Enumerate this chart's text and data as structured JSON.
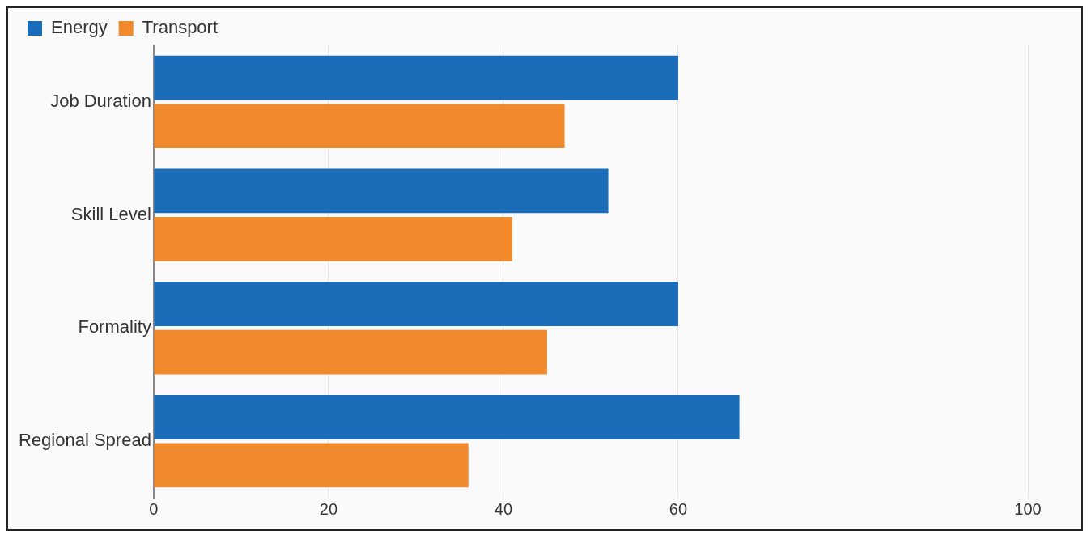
{
  "chart_data": {
    "type": "bar",
    "orientation": "horizontal",
    "categories": [
      "Job Duration",
      "Skill Level",
      "Formality",
      "Regional Spread"
    ],
    "series": [
      {
        "name": "Energy",
        "color": "#1a6bb8",
        "values": [
          60,
          52,
          60,
          67
        ]
      },
      {
        "name": "Transport",
        "color": "#f08a2c",
        "values": [
          47,
          41,
          45,
          36
        ]
      }
    ],
    "xlim": [
      0,
      100
    ],
    "xticks": [
      0,
      20,
      40,
      60,
      100
    ],
    "grid": "x",
    "legend": "top left"
  }
}
